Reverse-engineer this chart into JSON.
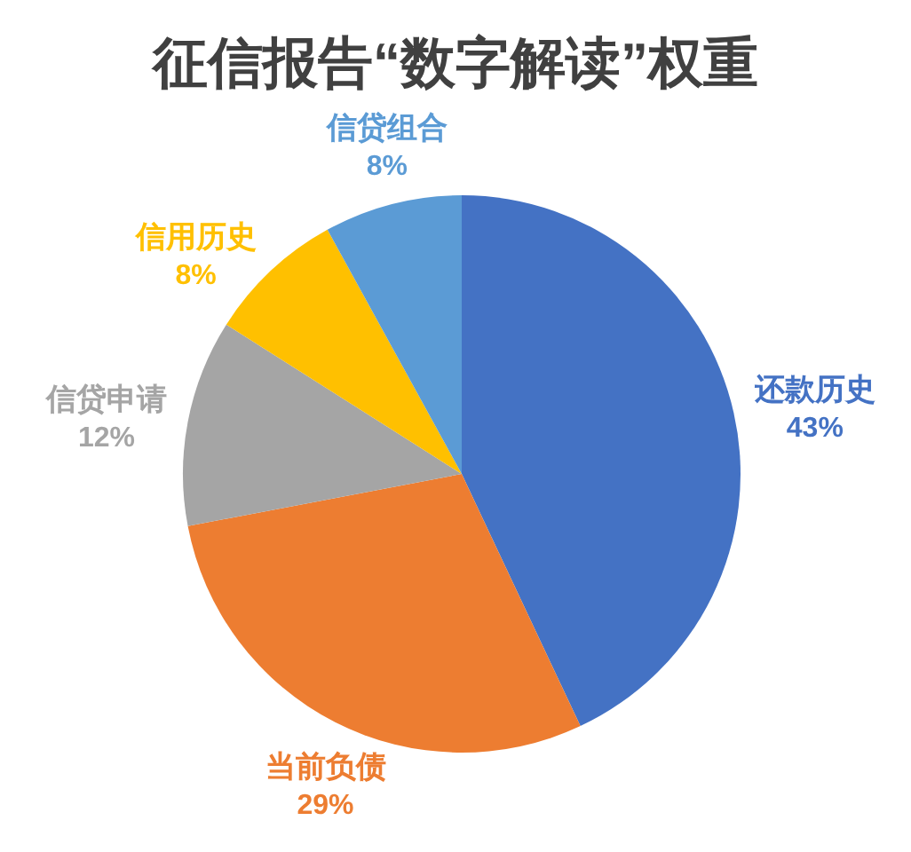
{
  "chart_data": {
    "type": "pie",
    "title": "征信报告“数字解读”权重",
    "categories": [
      "还款历史",
      "当前负债",
      "信贷申请",
      "信用历史",
      "信贷组合"
    ],
    "values": [
      43,
      29,
      12,
      8,
      8
    ],
    "colors": [
      "#4472c4",
      "#ed7d31",
      "#a5a5a5",
      "#ffc000",
      "#5b9bd5"
    ],
    "value_labels": [
      "43%",
      "29%",
      "12%",
      "8%",
      "8%"
    ]
  }
}
